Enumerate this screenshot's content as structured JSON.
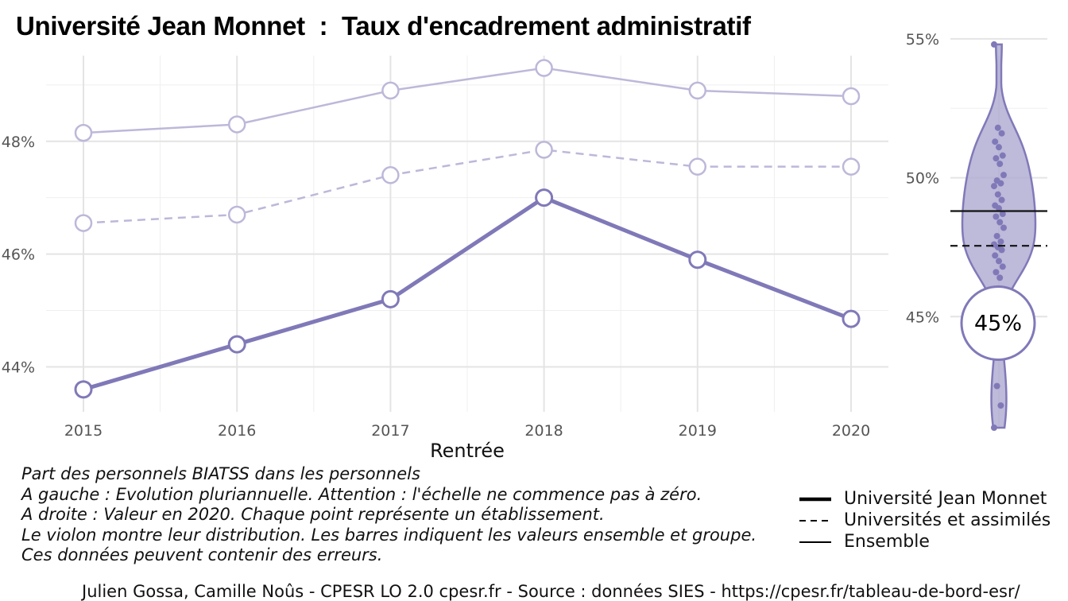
{
  "title": "Université Jean Monnet  :  Taux d'encadrement administratif",
  "caption": [
    "Part des personnels BIATSS dans les personnels",
    "A gauche : Evolution pluriannuelle. Attention : l'échelle ne commence pas à zéro.",
    "A droite : Valeur en 2020. Chaque point représente un établissement.",
    "Le violon montre leur distribution. Les barres indiquent les valeurs ensemble et groupe.",
    "Ces données peuvent contenir des erreurs."
  ],
  "legend": {
    "items": [
      "Université Jean Monnet",
      "Universités et assimilés",
      "Ensemble"
    ]
  },
  "source": "Julien Gossa, Camille Noûs - CPESR LO 2.0 cpesr.fr - Source : données SIES - https://cpesr.fr/tableau-de-bord-esr/",
  "colors": {
    "accent": "#8079b8",
    "accent_light": "#bdb8d9",
    "violin_fill": "#b2aed4"
  },
  "chart_data": [
    {
      "type": "line",
      "xlabel": "Rentrée",
      "ylabel": "",
      "x": [
        2015,
        2016,
        2017,
        2018,
        2019,
        2020
      ],
      "ylim": [
        43.4,
        49.9
      ],
      "yticks": [
        "44%",
        "46%",
        "48%"
      ],
      "ytick_values": [
        44,
        46,
        48
      ],
      "grid": true,
      "series": [
        {
          "name": "Université Jean Monnet",
          "style": "solid-thick",
          "values": [
            43.6,
            44.4,
            45.2,
            47.0,
            45.9,
            44.85
          ]
        },
        {
          "name": "Universités et assimilés",
          "style": "dashed",
          "values": [
            46.55,
            46.7,
            47.4,
            47.85,
            47.55,
            47.55
          ]
        },
        {
          "name": "Ensemble",
          "style": "solid-thin",
          "values": [
            48.15,
            48.3,
            48.9,
            49.3,
            48.9,
            48.8
          ]
        }
      ]
    },
    {
      "type": "violin",
      "year": 2020,
      "ylim": [
        40.8,
        56.0
      ],
      "yticks": [
        "45%",
        "50%",
        "55%"
      ],
      "ytick_values": [
        45,
        50,
        55
      ],
      "grid": true,
      "value_label": "45%",
      "highlight_value": 44.85,
      "ensemble_value": 48.8,
      "group_value": 47.55,
      "points": [
        54.8,
        51.8,
        51.6,
        51.3,
        51.1,
        50.8,
        50.7,
        50.5,
        50.1,
        49.9,
        49.8,
        49.7,
        49.4,
        49.2,
        49.0,
        48.9,
        48.7,
        48.6,
        48.4,
        48.2,
        47.9,
        47.7,
        47.6,
        47.5,
        47.4,
        47.2,
        47.0,
        46.8,
        46.6,
        46.4,
        43.6,
        42.5,
        41.8,
        41.0
      ]
    }
  ]
}
